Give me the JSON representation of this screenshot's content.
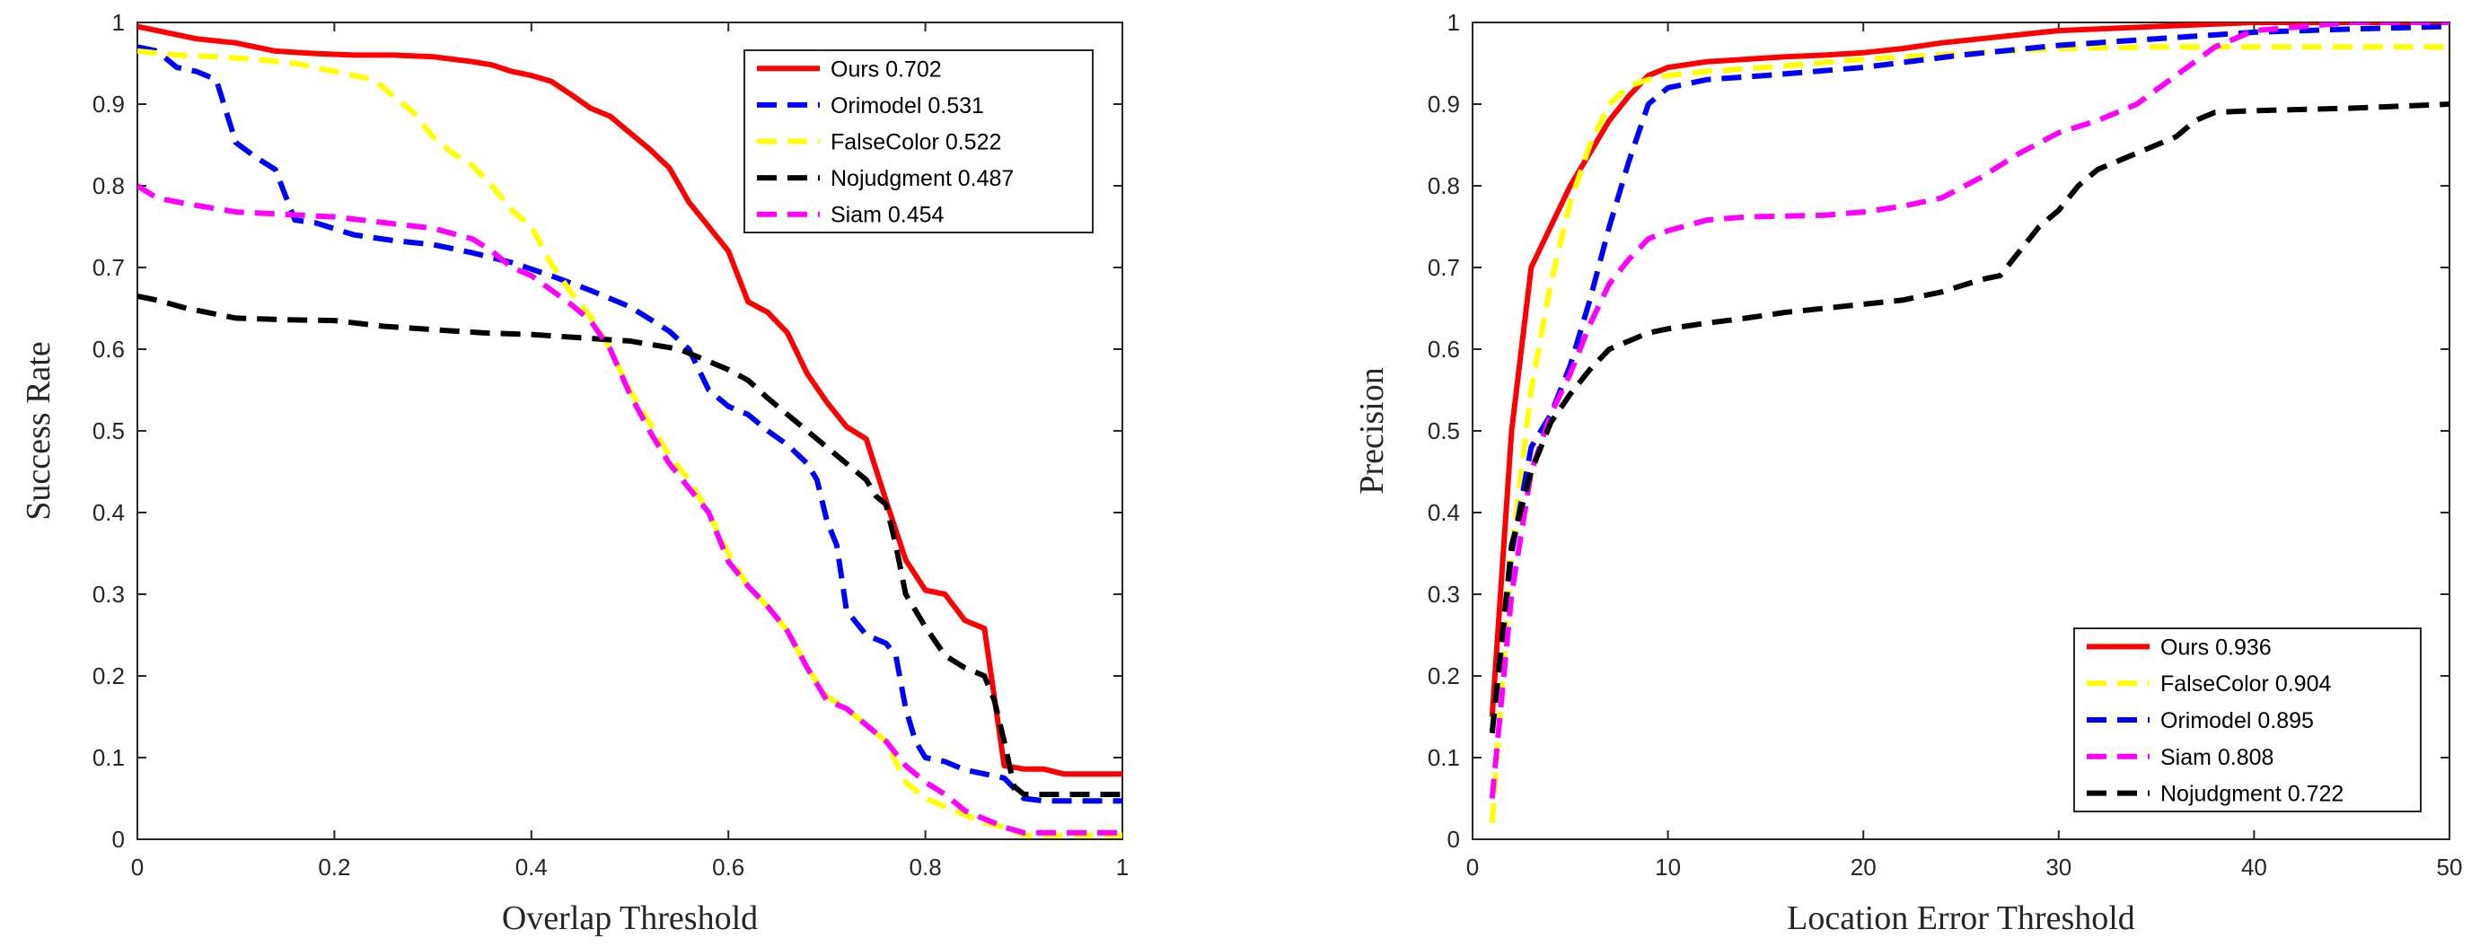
{
  "chart_data": [
    {
      "type": "line",
      "title": "",
      "xlabel": "Overlap Threshold",
      "ylabel": "Success Rate",
      "xlim": [
        0,
        1
      ],
      "ylim": [
        0,
        1
      ],
      "xticks": [
        "0",
        "0.2",
        "0.4",
        "0.6",
        "0.8",
        "1"
      ],
      "yticks": [
        "0",
        "0.1",
        "0.2",
        "0.3",
        "0.4",
        "0.5",
        "0.6",
        "0.7",
        "0.8",
        "0.9",
        "1"
      ],
      "legend_position": "top-right",
      "series": [
        {
          "name": "Ours",
          "score": "0.702",
          "color": "#ff0000",
          "style": "solid",
          "x": [
            0,
            0.02,
            0.06,
            0.1,
            0.14,
            0.18,
            0.22,
            0.26,
            0.3,
            0.34,
            0.36,
            0.38,
            0.4,
            0.42,
            0.44,
            0.46,
            0.48,
            0.5,
            0.52,
            0.54,
            0.56,
            0.58,
            0.6,
            0.62,
            0.64,
            0.66,
            0.68,
            0.7,
            0.72,
            0.74,
            0.76,
            0.78,
            0.8,
            0.82,
            0.84,
            0.86,
            0.88,
            0.9,
            0.92,
            0.94,
            0.96,
            0.98,
            1
          ],
          "y": [
            0.995,
            0.99,
            0.98,
            0.975,
            0.965,
            0.962,
            0.96,
            0.96,
            0.958,
            0.952,
            0.948,
            0.94,
            0.935,
            0.928,
            0.912,
            0.895,
            0.885,
            0.865,
            0.845,
            0.822,
            0.78,
            0.75,
            0.72,
            0.658,
            0.645,
            0.62,
            0.57,
            0.535,
            0.505,
            0.49,
            0.415,
            0.342,
            0.305,
            0.3,
            0.268,
            0.258,
            0.09,
            0.086,
            0.086,
            0.08,
            0.08,
            0.08,
            0.08
          ]
        },
        {
          "name": "Orimodel",
          "score": "0.531",
          "color": "#0000ff",
          "style": "dashed",
          "x": [
            0,
            0.02,
            0.04,
            0.06,
            0.08,
            0.1,
            0.12,
            0.14,
            0.16,
            0.18,
            0.22,
            0.26,
            0.3,
            0.34,
            0.38,
            0.42,
            0.46,
            0.5,
            0.54,
            0.56,
            0.58,
            0.6,
            0.62,
            0.64,
            0.66,
            0.68,
            0.69,
            0.7,
            0.71,
            0.72,
            0.74,
            0.76,
            0.77,
            0.78,
            0.79,
            0.8,
            0.82,
            0.84,
            0.86,
            0.88,
            0.9,
            0.92,
            0.95,
            1
          ],
          "y": [
            0.97,
            0.965,
            0.945,
            0.94,
            0.93,
            0.853,
            0.835,
            0.82,
            0.758,
            0.755,
            0.74,
            0.733,
            0.728,
            0.718,
            0.706,
            0.69,
            0.672,
            0.652,
            0.622,
            0.6,
            0.55,
            0.53,
            0.52,
            0.5,
            0.483,
            0.46,
            0.44,
            0.39,
            0.36,
            0.28,
            0.25,
            0.24,
            0.225,
            0.16,
            0.12,
            0.1,
            0.095,
            0.085,
            0.08,
            0.075,
            0.05,
            0.047,
            0.047,
            0.047
          ]
        },
        {
          "name": "FalseColor",
          "score": "0.522",
          "color": "#ffff00",
          "style": "dashed",
          "x": [
            0,
            0.04,
            0.08,
            0.12,
            0.16,
            0.2,
            0.24,
            0.26,
            0.28,
            0.3,
            0.32,
            0.34,
            0.36,
            0.38,
            0.4,
            0.42,
            0.44,
            0.46,
            0.48,
            0.5,
            0.52,
            0.54,
            0.56,
            0.58,
            0.6,
            0.62,
            0.64,
            0.66,
            0.68,
            0.7,
            0.72,
            0.74,
            0.76,
            0.78,
            0.8,
            0.82,
            0.84,
            0.86,
            0.88,
            0.9,
            0.95,
            1
          ],
          "y": [
            0.965,
            0.96,
            0.958,
            0.955,
            0.95,
            0.94,
            0.93,
            0.91,
            0.89,
            0.86,
            0.84,
            0.825,
            0.8,
            0.77,
            0.75,
            0.705,
            0.67,
            0.64,
            0.6,
            0.55,
            0.51,
            0.47,
            0.44,
            0.4,
            0.35,
            0.31,
            0.285,
            0.255,
            0.21,
            0.175,
            0.16,
            0.14,
            0.12,
            0.07,
            0.05,
            0.04,
            0.03,
            0.02,
            0.015,
            0.005,
            0.005,
            0.005
          ]
        },
        {
          "name": "Nojudgment",
          "score": "0.487",
          "color": "#000000",
          "style": "dashed",
          "x": [
            0,
            0.02,
            0.05,
            0.1,
            0.15,
            0.2,
            0.25,
            0.3,
            0.35,
            0.4,
            0.45,
            0.5,
            0.55,
            0.58,
            0.6,
            0.62,
            0.64,
            0.66,
            0.68,
            0.7,
            0.72,
            0.74,
            0.75,
            0.76,
            0.77,
            0.78,
            0.8,
            0.82,
            0.84,
            0.86,
            0.87,
            0.88,
            0.89,
            0.9,
            0.95,
            1
          ],
          "y": [
            0.665,
            0.66,
            0.65,
            0.638,
            0.636,
            0.635,
            0.628,
            0.624,
            0.62,
            0.618,
            0.614,
            0.61,
            0.6,
            0.585,
            0.575,
            0.562,
            0.54,
            0.52,
            0.5,
            0.48,
            0.46,
            0.44,
            0.42,
            0.41,
            0.36,
            0.3,
            0.26,
            0.225,
            0.21,
            0.2,
            0.17,
            0.12,
            0.065,
            0.055,
            0.055,
            0.055
          ]
        },
        {
          "name": "Siam",
          "score": "0.454",
          "color": "#ff00ff",
          "style": "dashed",
          "x": [
            0,
            0.02,
            0.05,
            0.1,
            0.15,
            0.2,
            0.25,
            0.3,
            0.34,
            0.36,
            0.38,
            0.4,
            0.44,
            0.46,
            0.48,
            0.5,
            0.52,
            0.54,
            0.56,
            0.58,
            0.6,
            0.62,
            0.64,
            0.66,
            0.68,
            0.7,
            0.72,
            0.74,
            0.76,
            0.78,
            0.8,
            0.82,
            0.84,
            0.86,
            0.88,
            0.9,
            0.95,
            1
          ],
          "y": [
            0.8,
            0.785,
            0.778,
            0.768,
            0.765,
            0.762,
            0.755,
            0.748,
            0.735,
            0.72,
            0.7,
            0.69,
            0.655,
            0.635,
            0.6,
            0.545,
            0.5,
            0.46,
            0.43,
            0.4,
            0.34,
            0.31,
            0.285,
            0.255,
            0.21,
            0.17,
            0.16,
            0.14,
            0.12,
            0.09,
            0.07,
            0.055,
            0.035,
            0.025,
            0.015,
            0.008,
            0.008,
            0.008
          ]
        }
      ]
    },
    {
      "type": "line",
      "title": "",
      "xlabel": "Location Error Threshold",
      "ylabel": "Precision",
      "xlim": [
        0,
        50
      ],
      "ylim": [
        0,
        1
      ],
      "xticks": [
        "0",
        "10",
        "20",
        "30",
        "40",
        "50"
      ],
      "yticks": [
        "0",
        "0.1",
        "0.2",
        "0.3",
        "0.4",
        "0.5",
        "0.6",
        "0.7",
        "0.8",
        "0.9",
        "1"
      ],
      "legend_position": "bottom-right",
      "series": [
        {
          "name": "Ours",
          "score": "0.936",
          "color": "#ff0000",
          "style": "solid",
          "x": [
            1,
            2,
            3,
            4,
            5,
            6,
            7,
            8,
            9,
            10,
            12,
            14,
            16,
            18,
            20,
            22,
            24,
            26,
            28,
            30,
            35,
            40,
            45,
            50
          ],
          "y": [
            0.15,
            0.5,
            0.7,
            0.75,
            0.8,
            0.84,
            0.88,
            0.91,
            0.935,
            0.945,
            0.952,
            0.955,
            0.958,
            0.96,
            0.963,
            0.968,
            0.975,
            0.98,
            0.985,
            0.99,
            0.995,
            1.0,
            1.0,
            1.0
          ]
        },
        {
          "name": "FalseColor",
          "score": "0.904",
          "color": "#ffff00",
          "style": "dashed",
          "x": [
            1,
            2,
            3,
            4,
            5,
            6,
            7,
            8,
            9,
            10,
            12,
            15,
            20,
            25,
            30,
            35,
            40,
            45,
            50
          ],
          "y": [
            0.02,
            0.35,
            0.55,
            0.68,
            0.78,
            0.85,
            0.9,
            0.922,
            0.93,
            0.935,
            0.94,
            0.945,
            0.955,
            0.962,
            0.968,
            0.97,
            0.97,
            0.97,
            0.97
          ]
        },
        {
          "name": "Orimodel",
          "score": "0.895",
          "color": "#0000ff",
          "style": "dashed",
          "x": [
            1,
            2,
            3,
            4,
            5,
            6,
            7,
            8,
            9,
            10,
            12,
            15,
            20,
            25,
            30,
            35,
            40,
            45,
            50
          ],
          "y": [
            0.13,
            0.35,
            0.48,
            0.52,
            0.58,
            0.66,
            0.75,
            0.83,
            0.9,
            0.92,
            0.93,
            0.935,
            0.945,
            0.96,
            0.972,
            0.98,
            0.988,
            0.992,
            0.995
          ]
        },
        {
          "name": "Siam",
          "score": "0.808",
          "color": "#ff00ff",
          "style": "dashed",
          "x": [
            1,
            2,
            3,
            4,
            5,
            6,
            7,
            8,
            9,
            10,
            12,
            14,
            16,
            18,
            20,
            22,
            24,
            26,
            28,
            30,
            32,
            34,
            36,
            38,
            40,
            45,
            50
          ],
          "y": [
            0.05,
            0.3,
            0.45,
            0.52,
            0.57,
            0.63,
            0.68,
            0.71,
            0.735,
            0.745,
            0.758,
            0.762,
            0.763,
            0.764,
            0.768,
            0.775,
            0.785,
            0.81,
            0.84,
            0.865,
            0.88,
            0.9,
            0.935,
            0.97,
            0.99,
            1.0,
            1.0
          ]
        },
        {
          "name": "Nojudgment",
          "score": "0.722",
          "color": "#000000",
          "style": "dashed",
          "x": [
            1,
            2,
            3,
            4,
            5,
            6,
            7,
            8,
            9,
            10,
            12,
            14,
            16,
            18,
            20,
            22,
            24,
            26,
            27,
            28,
            29,
            30,
            31,
            32,
            33,
            34,
            35,
            36,
            37,
            38,
            40,
            45,
            50
          ],
          "y": [
            0.13,
            0.36,
            0.45,
            0.51,
            0.545,
            0.575,
            0.6,
            0.61,
            0.62,
            0.625,
            0.632,
            0.638,
            0.645,
            0.65,
            0.655,
            0.66,
            0.67,
            0.685,
            0.69,
            0.72,
            0.75,
            0.77,
            0.8,
            0.82,
            0.83,
            0.84,
            0.85,
            0.86,
            0.88,
            0.89,
            0.892,
            0.895,
            0.9
          ]
        }
      ]
    }
  ]
}
